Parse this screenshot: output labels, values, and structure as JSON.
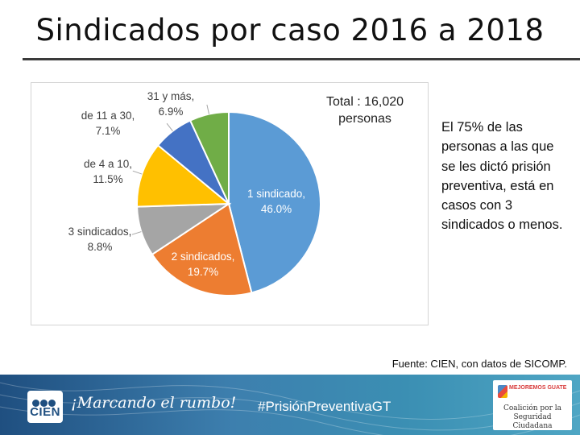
{
  "slide": {
    "title": "Sindicados por caso 2016 a 2018",
    "total_line1": "Total : 16,020",
    "total_line2": "personas",
    "note": "El 75% de las personas a las que se les dictó prisión preventiva, está en casos con 3 sindicados o menos.",
    "source": "Fuente: CIEN, con datos de SICOMP."
  },
  "footer": {
    "logo_text": "CIEN",
    "slogan": "¡Marcando el rumbo!",
    "hashtag": "#PrisiónPreventivaGT",
    "coalition_top": "MEJOREMOS GUATE",
    "coalition_name": "Coalición por la Seguridad Ciudadana"
  },
  "chart_data": {
    "type": "pie",
    "title": "",
    "unit": "%",
    "categories": [
      "1 sindicado",
      "2 sindicados",
      "3 sindicados",
      "de 4 a 10",
      "de 11 a 30",
      "31 y más"
    ],
    "values": [
      46.0,
      19.7,
      8.8,
      11.5,
      7.1,
      6.9
    ],
    "labels": [
      "46.0%",
      "19.7%",
      "8.8%",
      "11.5%",
      "7.1%",
      "6.9%"
    ],
    "colors": [
      "#5b9bd5",
      "#ed7d31",
      "#a5a5a5",
      "#ffc000",
      "#4472c4",
      "#70ad47"
    ],
    "start": "12 o'clock, clockwise"
  }
}
